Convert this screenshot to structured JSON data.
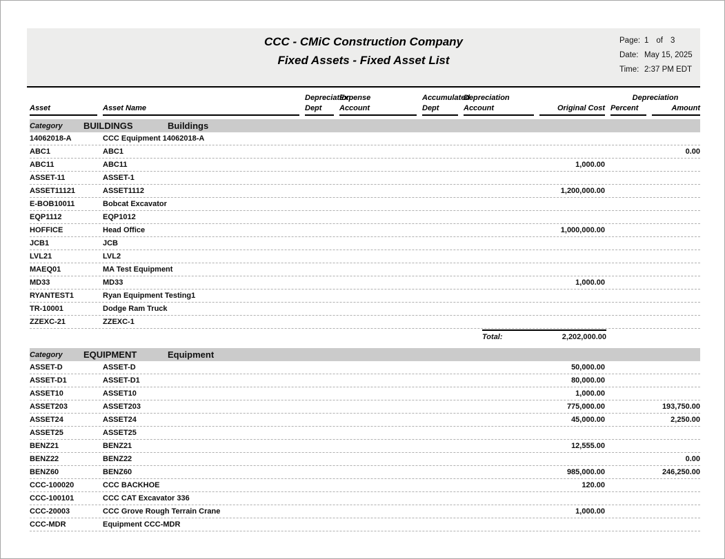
{
  "report": {
    "company_title": "CCC - CMiC Construction Company",
    "report_title": "Fixed Assets - Fixed Asset List",
    "page_label": "Page:",
    "page_number": "1",
    "page_of_label": "of",
    "page_total": "3",
    "date_label": "Date:",
    "date_value": "May 15, 2025",
    "time_label": "Time:",
    "time_value": "2:37 PM EDT"
  },
  "colors": {
    "header_band": "#ededec",
    "category_band": "#cbcbcb"
  },
  "columns": {
    "line1": {
      "depreciation1": "Depreciation",
      "expense": "Expense",
      "accumulated": "Accumulated",
      "depreciation2": "Depreciation",
      "depreciation3": "Depreciation"
    },
    "line2": {
      "asset": "Asset",
      "asset_name": "Asset Name",
      "dept1": "Dept",
      "account1": "Account",
      "dept2": "Dept",
      "account2": "Account",
      "original_cost": "Original Cost",
      "percent": "Percent",
      "amount": "Amount"
    }
  },
  "sections": [
    {
      "category_label": "Category",
      "code": "BUILDINGS",
      "name": "Buildings",
      "rows": [
        {
          "asset": "14062018-A",
          "name": "CCC Equipment 14062018-A",
          "original_cost": "",
          "amount": ""
        },
        {
          "asset": "ABC1",
          "name": "ABC1",
          "original_cost": "",
          "amount": "0.00"
        },
        {
          "asset": "ABC11",
          "name": "ABC11",
          "original_cost": "1,000.00",
          "amount": ""
        },
        {
          "asset": "ASSET-11",
          "name": "ASSET-1",
          "original_cost": "",
          "amount": ""
        },
        {
          "asset": "ASSET11121",
          "name": "ASSET1112",
          "original_cost": "1,200,000.00",
          "amount": ""
        },
        {
          "asset": "E-BOB10011",
          "name": "Bobcat Excavator",
          "original_cost": "",
          "amount": ""
        },
        {
          "asset": "EQP1112",
          "name": "EQP1012",
          "original_cost": "",
          "amount": ""
        },
        {
          "asset": "HOFFICE",
          "name": "Head Office",
          "original_cost": "1,000,000.00",
          "amount": ""
        },
        {
          "asset": "JCB1",
          "name": "JCB",
          "original_cost": "",
          "amount": ""
        },
        {
          "asset": "LVL21",
          "name": "LVL2",
          "original_cost": "",
          "amount": ""
        },
        {
          "asset": "MAEQ01",
          "name": "MA Test Equipment",
          "original_cost": "",
          "amount": ""
        },
        {
          "asset": "MD33",
          "name": "MD33",
          "original_cost": "1,000.00",
          "amount": ""
        },
        {
          "asset": "RYANTEST1",
          "name": "Ryan Equipment Testing1",
          "original_cost": "",
          "amount": ""
        },
        {
          "asset": "TR-10001",
          "name": "Dodge Ram Truck",
          "original_cost": "",
          "amount": ""
        },
        {
          "asset": "ZZEXC-21",
          "name": "ZZEXC-1",
          "original_cost": "",
          "amount": ""
        }
      ],
      "total_label": "Total:",
      "total": "2,202,000.00"
    },
    {
      "category_label": "Category",
      "code": "EQUIPMENT",
      "name": "Equipment",
      "rows": [
        {
          "asset": "ASSET-D",
          "name": "ASSET-D",
          "original_cost": "50,000.00",
          "amount": ""
        },
        {
          "asset": "ASSET-D1",
          "name": "ASSET-D1",
          "original_cost": "80,000.00",
          "amount": ""
        },
        {
          "asset": "ASSET10",
          "name": "ASSET10",
          "original_cost": "1,000.00",
          "amount": ""
        },
        {
          "asset": "ASSET203",
          "name": "ASSET203",
          "original_cost": "775,000.00",
          "amount": "193,750.00"
        },
        {
          "asset": "ASSET24",
          "name": "ASSET24",
          "original_cost": "45,000.00",
          "amount": "2,250.00"
        },
        {
          "asset": "ASSET25",
          "name": "ASSET25",
          "original_cost": "",
          "amount": ""
        },
        {
          "asset": "BENZ21",
          "name": "BENZ21",
          "original_cost": "12,555.00",
          "amount": ""
        },
        {
          "asset": "BENZ22",
          "name": "BENZ22",
          "original_cost": "",
          "amount": "0.00"
        },
        {
          "asset": "BENZ60",
          "name": "BENZ60",
          "original_cost": "985,000.00",
          "amount": "246,250.00"
        },
        {
          "asset": "CCC-100020",
          "name": "CCC BACKHOE",
          "original_cost": "120.00",
          "amount": ""
        },
        {
          "asset": "CCC-100101",
          "name": "CCC CAT Excavator 336",
          "original_cost": "",
          "amount": ""
        },
        {
          "asset": "CCC-20003",
          "name": "CCC Grove Rough Terrain Crane",
          "original_cost": "1,000.00",
          "amount": ""
        },
        {
          "asset": "CCC-MDR",
          "name": "Equipment CCC-MDR",
          "original_cost": "",
          "amount": ""
        }
      ]
    }
  ]
}
